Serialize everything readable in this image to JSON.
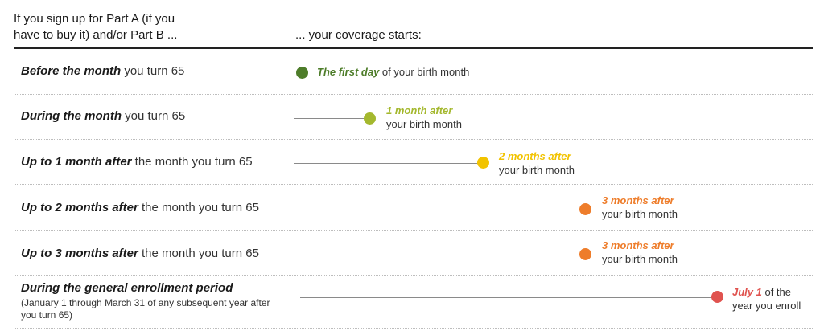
{
  "header": {
    "left_line1": "If you sign up for Part A (if you",
    "left_line2": "have to buy it) and/or Part B ...",
    "right": "... your coverage starts:"
  },
  "rows": [
    {
      "cond_bold": "Before the month",
      "cond_rest": " you turn 65",
      "result_em": "The first day",
      "result_rest": " of your birth month",
      "color": "#4e7d2a"
    },
    {
      "cond_bold": "During the month",
      "cond_rest": " you turn 65",
      "result_em": "1 month after",
      "result_rest": "your birth month",
      "color": "#a4b82e"
    },
    {
      "cond_bold": "Up to 1 month after",
      "cond_rest": " the month you turn 65",
      "result_em": "2 months after",
      "result_rest": "your birth month",
      "color": "#f2c300"
    },
    {
      "cond_bold": "Up to 2 months after",
      "cond_rest": " the month you turn 65",
      "result_em": "3 months after",
      "result_rest": "your birth month",
      "color": "#ee7d2b"
    },
    {
      "cond_bold": "Up to 3 months after",
      "cond_rest": " the month you turn 65",
      "result_em": "3 months after",
      "result_rest": "your birth month",
      "color": "#ee7d2b"
    },
    {
      "cond_bold": "During the general enrollment period",
      "cond_note": "(January 1 through March 31 of any subsequent year after you turn 65)",
      "result_em": "July 1",
      "result_rest_1": " of the",
      "result_rest_2": "year you enroll",
      "color": "#e0534f"
    }
  ]
}
